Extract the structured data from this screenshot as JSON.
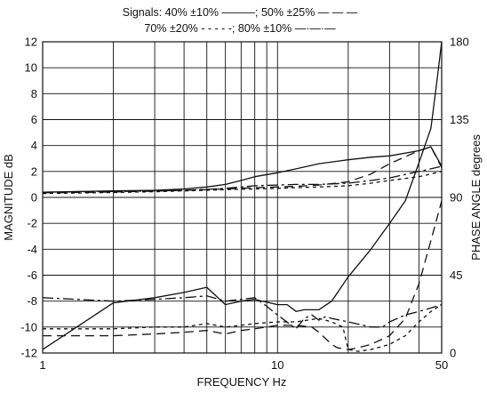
{
  "chart_data": {
    "type": "line",
    "legend": {
      "line1": "Signals: 40% ±10% ———; 50% ±25% — — —",
      "line2": "70% ±20% - - - - -; 80% ±10% —·—·—",
      "placement": "top"
    },
    "xlabel": "FREQUENCY  Hz",
    "ylabel_left": "MAGNITUDE  dB",
    "ylabel_right": "PHASE ANGLE  degrees",
    "x_scale": "log",
    "xlim": [
      1,
      50
    ],
    "ylim_left": [
      -12,
      12
    ],
    "ylim_right": [
      0,
      180
    ],
    "grid": true,
    "x_ticks": [
      {
        "value": 1,
        "label": "1"
      },
      {
        "value": 10,
        "label": "10"
      },
      {
        "value": 50,
        "label": "50"
      }
    ],
    "x_gridlines": [
      2,
      3,
      4,
      5,
      6,
      7,
      8,
      9,
      20,
      30,
      40
    ],
    "y_ticks_left": [
      {
        "value": 12,
        "label": "12"
      },
      {
        "value": 10,
        "label": "10"
      },
      {
        "value": 8,
        "label": "8"
      },
      {
        "value": 6,
        "label": "6"
      },
      {
        "value": 4,
        "label": "4"
      },
      {
        "value": 2,
        "label": "2"
      },
      {
        "value": 0,
        "label": "0"
      },
      {
        "value": -2,
        "label": "-2"
      },
      {
        "value": -4,
        "label": "-4"
      },
      {
        "value": -6,
        "label": "-6"
      },
      {
        "value": -8,
        "label": "-8"
      },
      {
        "value": -10,
        "label": "-10"
      },
      {
        "value": -12,
        "label": "-12"
      }
    ],
    "y_ticks_right": [
      {
        "value": 180,
        "label": "180"
      },
      {
        "value": 135,
        "label": "135"
      },
      {
        "value": 90,
        "label": "90"
      },
      {
        "value": 45,
        "label": "45"
      },
      {
        "value": 0,
        "label": "0"
      }
    ],
    "series": [
      {
        "signal": "40% ±10%",
        "quantity": "magnitude",
        "style": "solid",
        "x": [
          1,
          2,
          3,
          4,
          5,
          6,
          7,
          8,
          10,
          12,
          15,
          20,
          25,
          30,
          40,
          45,
          50
        ],
        "y": [
          0.4,
          0.5,
          0.55,
          0.65,
          0.8,
          1.0,
          1.3,
          1.6,
          1.9,
          2.2,
          2.6,
          2.9,
          3.1,
          3.2,
          3.6,
          3.9,
          2.4
        ]
      },
      {
        "signal": "50% ±25%",
        "quantity": "magnitude",
        "style": "dashed",
        "x": [
          1,
          2,
          3,
          4,
          5,
          6,
          7,
          8,
          10,
          12,
          15,
          20,
          25,
          30,
          40,
          45,
          50
        ],
        "y": [
          0.35,
          0.42,
          0.48,
          0.55,
          0.6,
          0.65,
          0.7,
          0.75,
          0.8,
          0.85,
          0.95,
          1.2,
          1.8,
          2.6,
          3.6,
          3.9,
          2.3
        ]
      },
      {
        "signal": "70% ±20%",
        "quantity": "magnitude",
        "style": "dotted",
        "x": [
          1,
          2,
          3,
          4,
          5,
          6,
          7,
          8,
          10,
          12,
          15,
          20,
          25,
          30,
          40,
          45,
          50
        ],
        "y": [
          0.3,
          0.38,
          0.44,
          0.5,
          0.55,
          0.6,
          0.63,
          0.65,
          0.7,
          0.75,
          0.8,
          0.9,
          1.1,
          1.3,
          1.6,
          1.8,
          2.0
        ]
      },
      {
        "signal": "80% ±10%",
        "quantity": "magnitude",
        "style": "dashdot",
        "x": [
          1,
          2,
          3,
          4,
          5,
          6,
          7,
          8,
          10,
          12,
          15,
          20,
          25,
          30,
          40,
          45,
          50
        ],
        "y": [
          0.4,
          0.45,
          0.5,
          0.55,
          0.62,
          0.7,
          0.8,
          0.9,
          0.95,
          1.0,
          1.0,
          1.1,
          1.3,
          1.5,
          2.0,
          2.2,
          2.4
        ]
      },
      {
        "signal": "40% ±10%",
        "quantity": "phase",
        "style": "solid",
        "x": [
          1,
          2,
          3,
          4,
          5,
          6,
          7,
          8,
          10,
          11,
          12,
          13,
          15,
          17,
          20,
          25,
          30,
          35,
          40,
          45,
          48,
          50
        ],
        "y": [
          2,
          29,
          32,
          35,
          38,
          28,
          30,
          31,
          28,
          28,
          24,
          25,
          25,
          30,
          44,
          60,
          75,
          88,
          110,
          130,
          160,
          180
        ]
      },
      {
        "signal": "50% ±25%",
        "quantity": "phase",
        "style": "dashed",
        "x": [
          1,
          2,
          3,
          4,
          5,
          6,
          7,
          8,
          10,
          12,
          14,
          15,
          17,
          18,
          20,
          22,
          25,
          30,
          35,
          40,
          45,
          50
        ],
        "y": [
          10,
          10,
          11,
          12,
          13,
          11,
          13,
          14,
          16,
          16,
          15,
          12,
          5,
          3,
          2,
          3,
          5,
          10,
          20,
          40,
          65,
          88
        ]
      },
      {
        "signal": "70% ±20%",
        "quantity": "phase",
        "style": "dotted",
        "x": [
          1,
          2,
          3,
          4,
          5,
          6,
          7,
          8,
          10,
          12,
          15,
          17,
          19,
          20,
          22,
          25,
          30,
          35,
          40,
          45,
          50
        ],
        "y": [
          14,
          14,
          15,
          15,
          17,
          15,
          16,
          17,
          18,
          18,
          20,
          18,
          15,
          2,
          1,
          2,
          5,
          10,
          18,
          24,
          28
        ]
      },
      {
        "signal": "80% ±10%",
        "quantity": "phase",
        "style": "dashdot",
        "x": [
          1,
          2,
          3,
          4,
          5,
          6,
          7,
          8,
          9,
          10,
          12,
          13,
          14,
          15,
          16,
          17,
          20,
          25,
          28,
          30,
          35,
          40,
          45,
          50
        ],
        "y": [
          32,
          30,
          31,
          32,
          33,
          30,
          31,
          32,
          27,
          22,
          14,
          20,
          22,
          19,
          21,
          20,
          18,
          15,
          15,
          18,
          22,
          24,
          26,
          28
        ]
      }
    ]
  }
}
